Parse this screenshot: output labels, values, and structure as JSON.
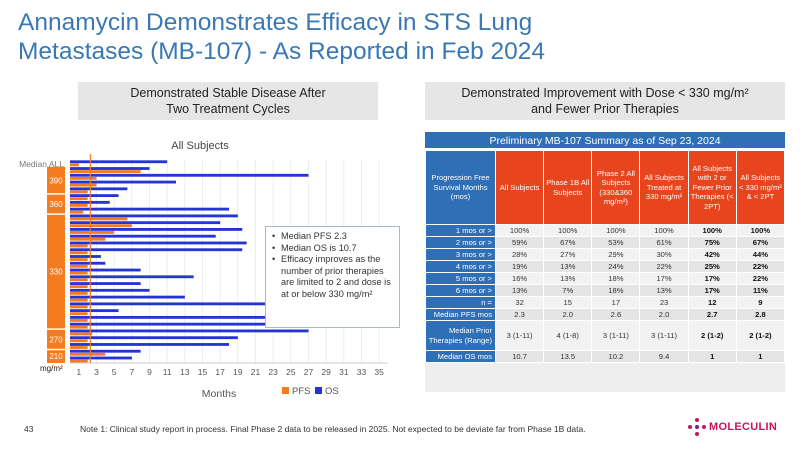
{
  "slide": {
    "title": "Annamycin Demonstrates Efficacy in STS Lung Metastases (MB-107) - As Reported in Feb 2024",
    "left_header_line1": "Demonstrated Stable Disease After",
    "left_header_line2": "Two Treatment Cycles",
    "right_header_line1": "Demonstrated Improvement with Dose < 330 mg/m²",
    "right_header_line2": "and Fewer Prior Therapies",
    "page_number": "43",
    "footnote": "Note 1: Clinical study report in process. Final Phase 2 data to be released in 2025. Not expected to be deviate far from Phase 1B data.",
    "logo_text": "MOLECULIN"
  },
  "colors": {
    "title": "#3a78b5",
    "pfs": "#f47b20",
    "os": "#2534d6",
    "median_line": "#f47b20",
    "dose_group": "#f47b20",
    "table_header_orange": "#e8451e",
    "table_header_blue": "#2f6fb6"
  },
  "chart_data": {
    "type": "bar",
    "orientation": "horizontal",
    "title": "All Subjects",
    "xlabel": "Months",
    "ylabel": "mg/m²",
    "x_ticks": [
      1,
      3,
      5,
      7,
      9,
      11,
      13,
      15,
      17,
      19,
      21,
      23,
      25,
      27,
      29,
      31,
      33,
      35
    ],
    "xlim": [
      0,
      36
    ],
    "grid": true,
    "legend": [
      "PFS",
      "OS"
    ],
    "legend_position": "bottom",
    "median_label": "Median ALL",
    "median_pfs_x": 2.3,
    "dose_groups": [
      {
        "label": "390",
        "from_row": 1,
        "to_row": 4
      },
      {
        "label": "360",
        "from_row": 5,
        "to_row": 7
      },
      {
        "label": "330",
        "from_row": 8,
        "to_row": 24
      },
      {
        "label": "270",
        "from_row": 25,
        "to_row": 27
      },
      {
        "label": "210",
        "from_row": 28,
        "to_row": 29
      }
    ],
    "series": [
      {
        "name": "PFS",
        "values": [
          1.0,
          8.0,
          3.0,
          3.0,
          2.0,
          2.0,
          2.0,
          1.5,
          6.5,
          7.0,
          5.0,
          4.0,
          2.0,
          2.0,
          2.0,
          2.0,
          2.0,
          2.0,
          2.0,
          2.0,
          2.0,
          2.0,
          2.0,
          2.0,
          2.0,
          2.5,
          2.0,
          2.0,
          4.0,
          2.0
        ]
      },
      {
        "name": "OS",
        "values": [
          11.0,
          9.0,
          27.0,
          12.0,
          6.5,
          5.5,
          4.5,
          18.0,
          19.0,
          17.0,
          19.5,
          16.5,
          20.0,
          19.5,
          3.5,
          4.0,
          8.0,
          14.0,
          8.0,
          9.0,
          13.0,
          33.0,
          5.5,
          31.0,
          34.0,
          27.0,
          19.0,
          18.0,
          8.0,
          7.0
        ]
      }
    ]
  },
  "bullets": [
    "Median PFS 2.3",
    "Median OS is 10.7",
    "Efficacy improves as the number of prior therapies are limited to 2 and dose is at or below 330 mg/m²"
  ],
  "table": {
    "title": "Preliminary MB-107 Summary as of Sep 23, 2024",
    "headers": [
      "Progression Free Survival Months (mos)",
      "All Subjects",
      "Phase 1B All Subjects",
      "Phase 2 All Subjects (330&360 mg/m²)",
      "All Subjects Treated at 330 mg/m²",
      "All Subjects with 2 or Fewer Prior Therapies (< 2PT)",
      "All Subjects < 330 mg/m² & < 2PT"
    ],
    "rows": [
      {
        "label": "1 mos or >",
        "cells": [
          "100%",
          "100%",
          "100%",
          "100%",
          "100%",
          "100%"
        ]
      },
      {
        "label": "2 mos or >",
        "cells": [
          "59%",
          "67%",
          "53%",
          "61%",
          "75%",
          "67%"
        ]
      },
      {
        "label": "3 mos or >",
        "cells": [
          "28%",
          "27%",
          "29%",
          "30%",
          "42%",
          "44%"
        ]
      },
      {
        "label": "4 mos or >",
        "cells": [
          "19%",
          "13%",
          "24%",
          "22%",
          "25%",
          "22%"
        ]
      },
      {
        "label": "5 mos or >",
        "cells": [
          "16%",
          "13%",
          "18%",
          "17%",
          "17%",
          "22%"
        ]
      },
      {
        "label": "6 mos or >",
        "cells": [
          "13%",
          "7%",
          "18%",
          "13%",
          "17%",
          "11%"
        ]
      },
      {
        "label": "n =",
        "cells": [
          "32",
          "15",
          "17",
          "23",
          "12",
          "9"
        ]
      },
      {
        "label": "Median PFS mos",
        "cells": [
          "2.3",
          "2.0",
          "2.6",
          "2.0",
          "2.7",
          "2.8"
        ]
      },
      {
        "label": "Median Prior Therapies (Range)",
        "cells": [
          "3 (1-11)",
          "4 (1-8)",
          "3 (1-11)",
          "3 (1-11)",
          "2 (1-2)",
          "2 (1-2)"
        ]
      },
      {
        "label": "Median OS mos",
        "cells": [
          "10.7",
          "13.5",
          "10.2",
          "9.4",
          "1",
          "1"
        ]
      }
    ]
  }
}
